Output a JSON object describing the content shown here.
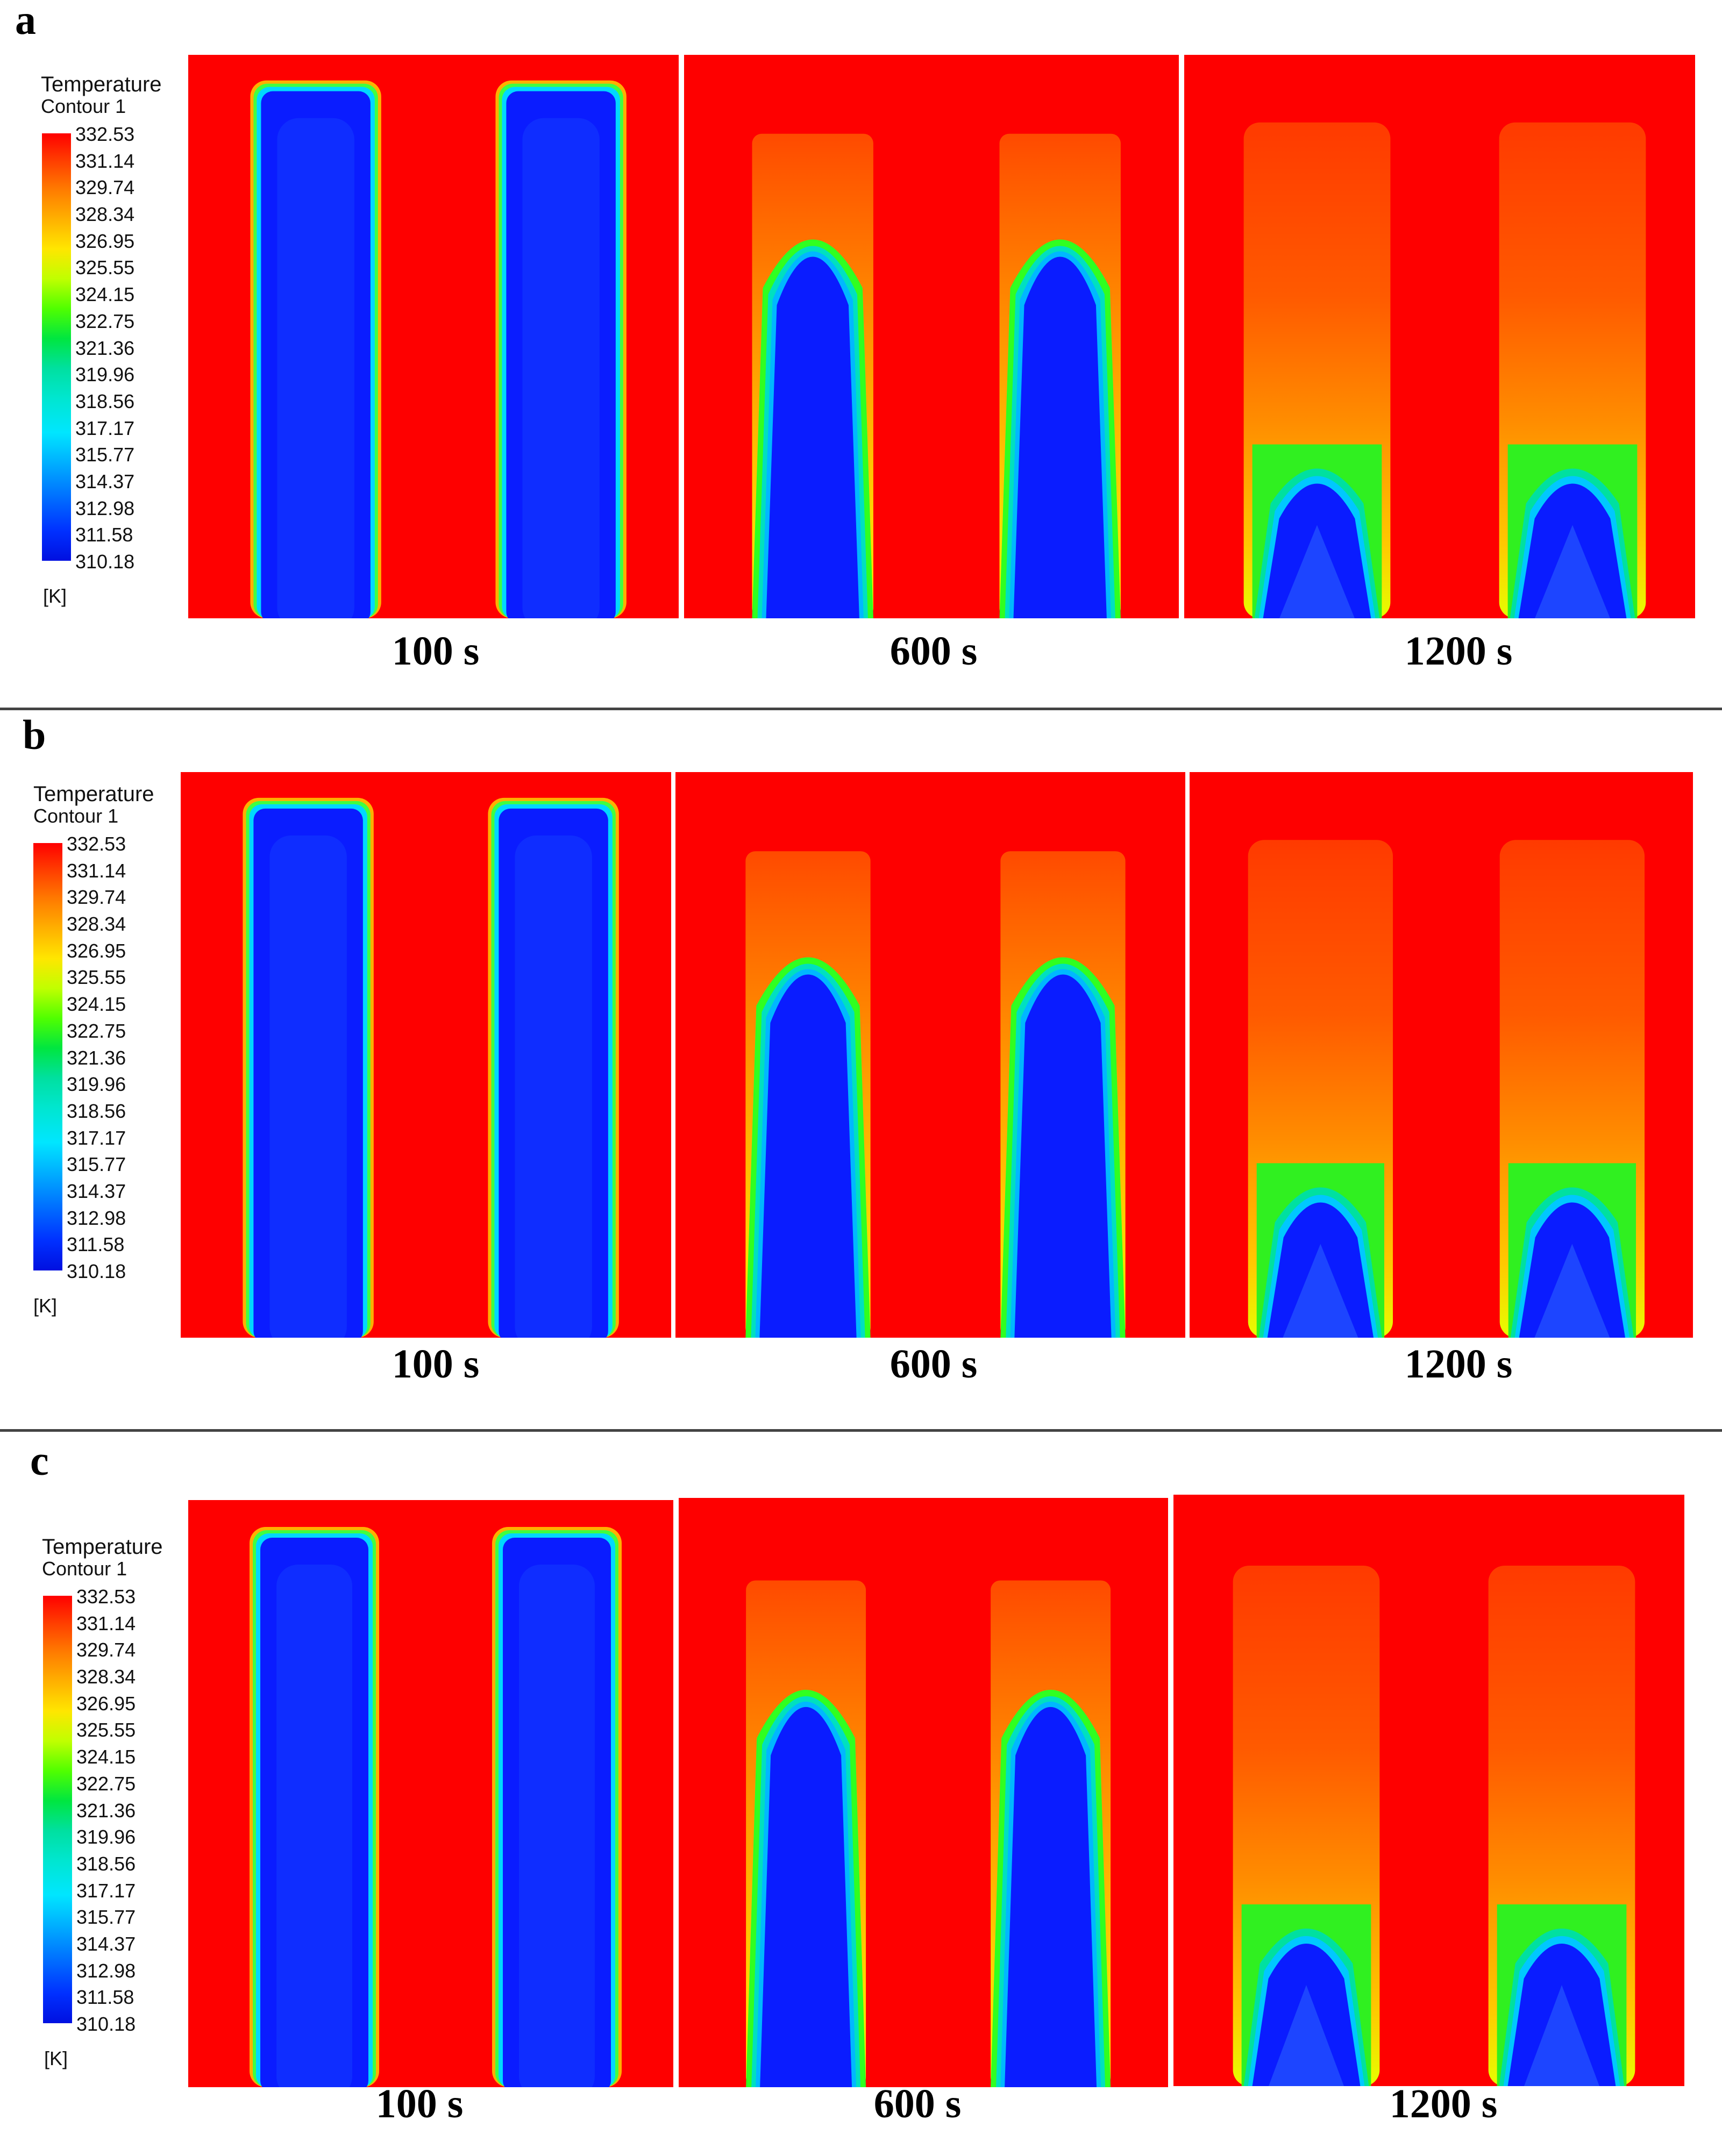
{
  "rows": [
    {
      "label": "a"
    },
    {
      "label": "b"
    },
    {
      "label": "c"
    }
  ],
  "legend": {
    "title": "Temperature",
    "subtitle": "Contour 1",
    "unit": "[K]",
    "ticks": [
      "332.53",
      "331.14",
      "329.74",
      "328.34",
      "326.95",
      "325.55",
      "324.15",
      "322.75",
      "321.36",
      "319.96",
      "318.56",
      "317.17",
      "315.77",
      "314.37",
      "312.98",
      "311.58",
      "310.18"
    ],
    "colors": [
      "#ff0000",
      "#ff4a00",
      "#ff8c00",
      "#ffc000",
      "#ffee00",
      "#c8ff00",
      "#6eff00",
      "#00e800",
      "#00e07a",
      "#00e6c4",
      "#00e6ff",
      "#00b4ff",
      "#007aff",
      "#0040ff",
      "#0010ee"
    ]
  },
  "times": [
    "100 s",
    "600 s",
    "1200 s"
  ]
}
